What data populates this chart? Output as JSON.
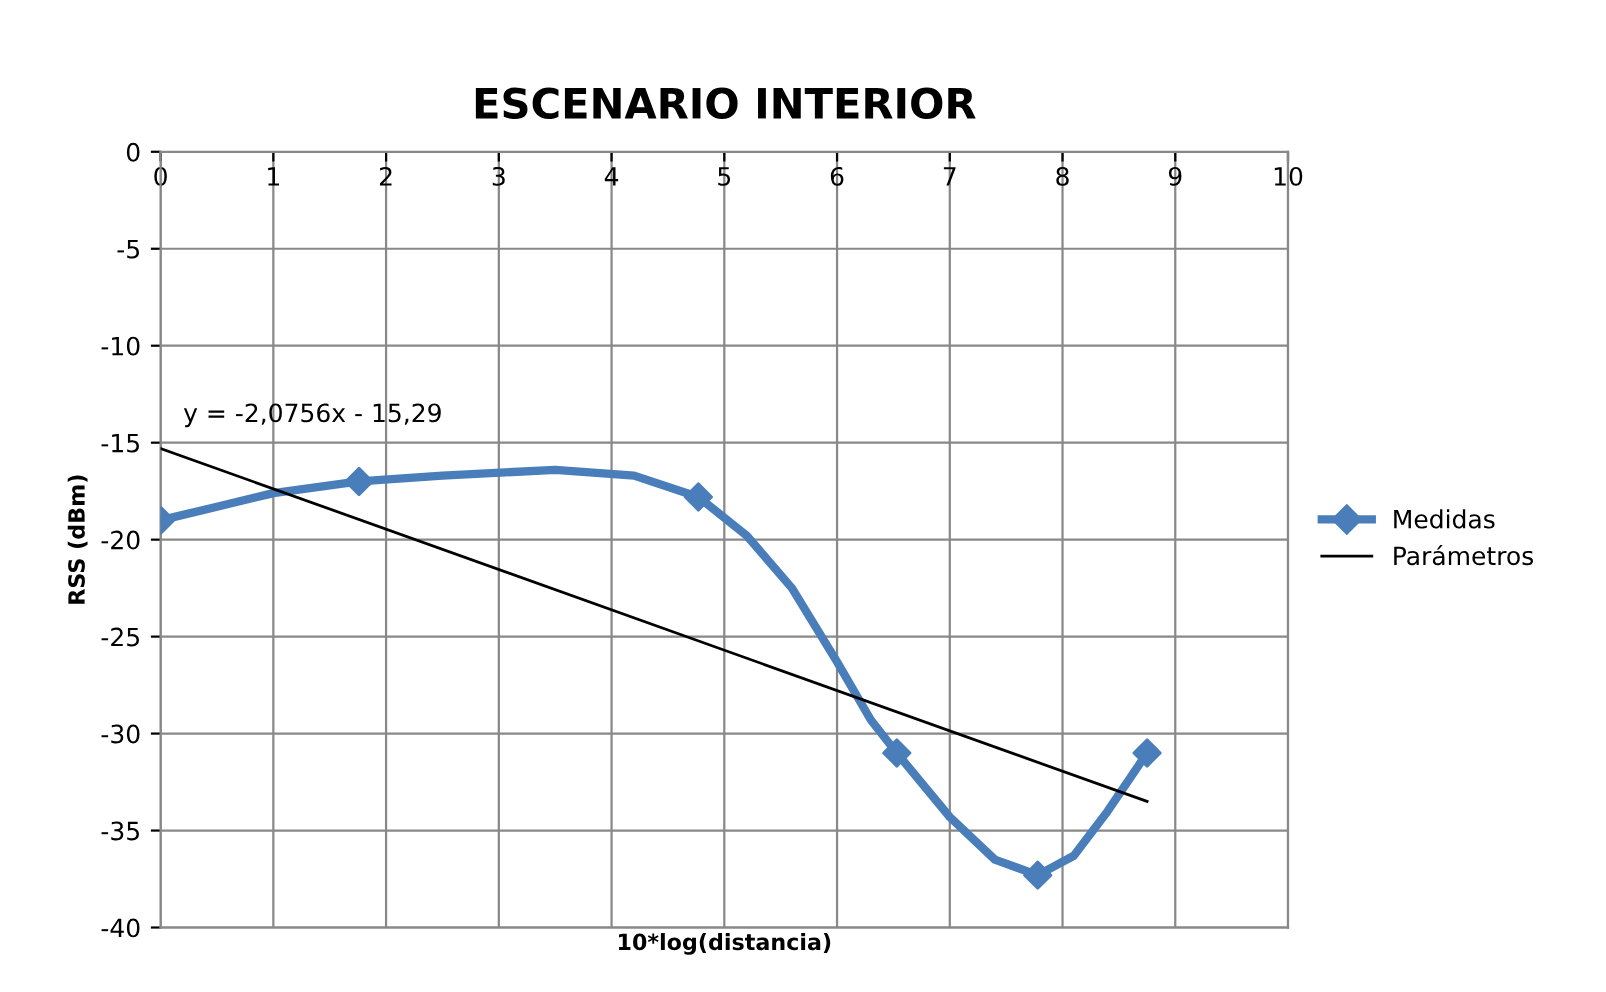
{
  "chart_data": {
    "type": "line",
    "title": "ESCENARIO INTERIOR",
    "xlabel": "10*log(distancia)",
    "ylabel": "RSS (dBm)",
    "series": [
      {
        "name": "Medidas",
        "color": "#4a7ebb",
        "x": [
          0,
          0.5,
          1,
          1.76,
          2.5,
          3.5,
          4.2,
          4.77,
          5.2,
          5.6,
          6,
          6.3,
          6.53,
          7,
          7.4,
          7.78,
          8.1,
          8.4,
          8.75
        ],
        "values": [
          -19,
          -18.3,
          -17.6,
          -17,
          -16.7,
          -16.4,
          -16.7,
          -17.8,
          -19.8,
          -22.5,
          -26.3,
          -29.3,
          -31,
          -34.3,
          -36.5,
          -37.3,
          -36.3,
          -34,
          -31
        ],
        "marker": "none"
      },
      {
        "type": "scatter",
        "color": "#4a7ebb",
        "x": [
          0,
          1.76,
          4.77,
          6.53,
          7.78,
          8.75
        ],
        "values": [
          -19,
          -17,
          -17.8,
          -31,
          -37.3,
          -31
        ],
        "marker": "diamond"
      },
      {
        "name": "Parámetros",
        "color": "#000000",
        "x": [
          0,
          8.75
        ],
        "values": [
          -15.3,
          -33.5
        ],
        "marker": "none"
      }
    ],
    "annotations": [
      "y = -2,0756x - 15,29"
    ],
    "xlim": [
      0,
      10
    ],
    "xticks": [
      0,
      1,
      2,
      3,
      4,
      5,
      6,
      7,
      8,
      9,
      10
    ],
    "ylim": [
      -40,
      0
    ],
    "yticks": [
      0,
      -5,
      -10,
      -15,
      -20,
      -25,
      -30,
      -35,
      -40
    ],
    "grid": true,
    "legend": "right"
  }
}
